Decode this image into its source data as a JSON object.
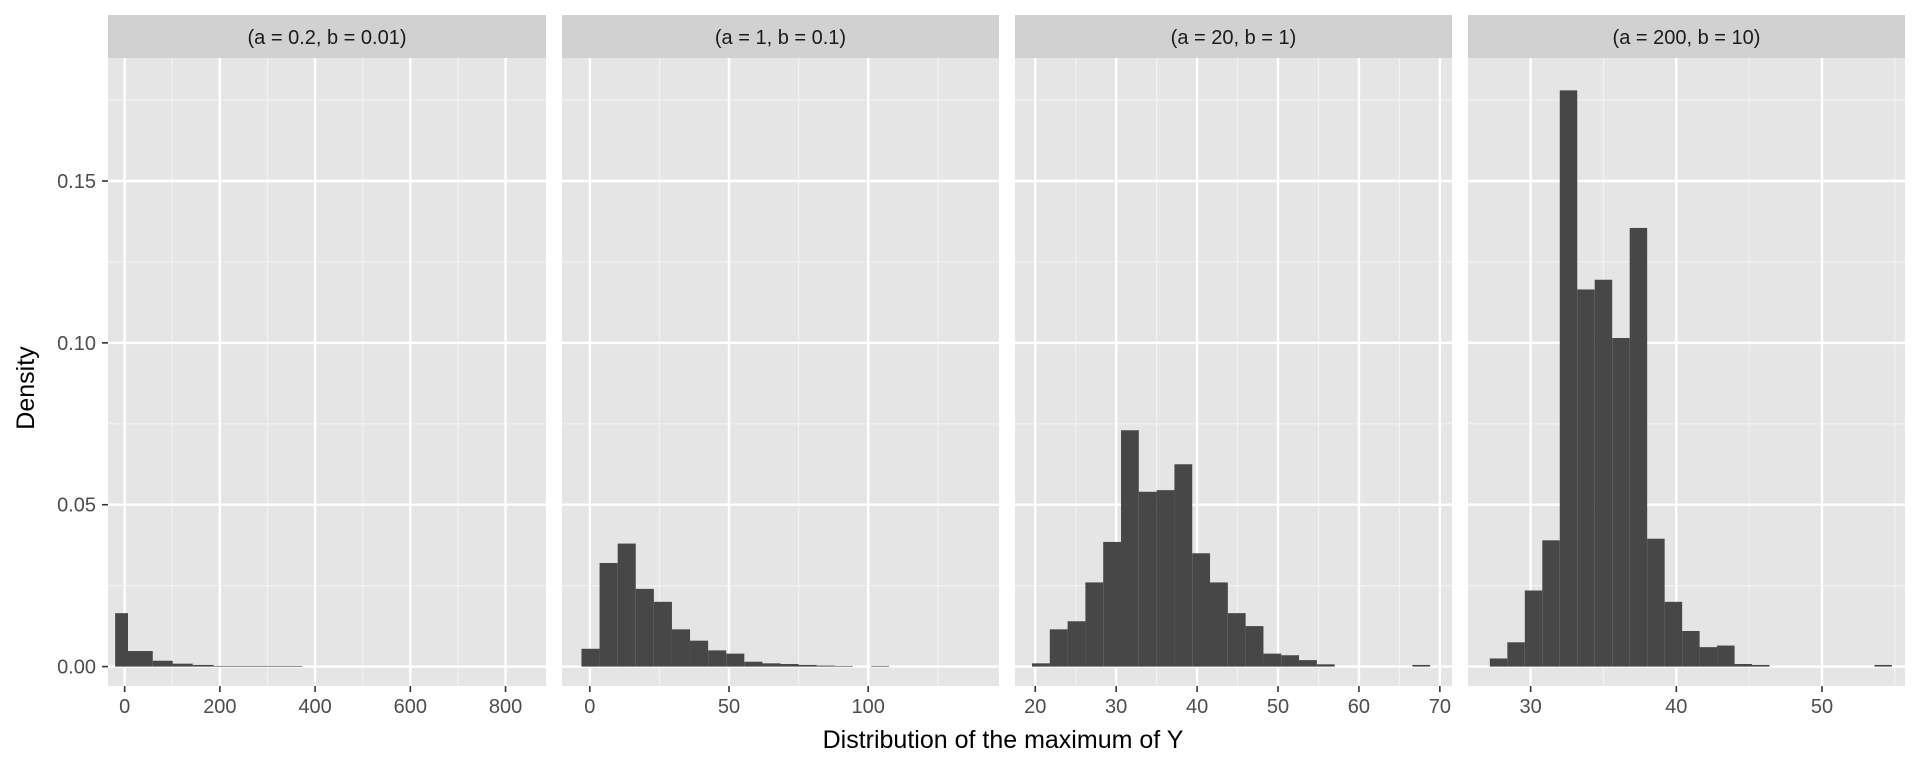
{
  "chart_data": {
    "type": "bar",
    "subtype": "faceted-histogram",
    "xlabel": "Distribution of the maximum of Y",
    "ylabel": "Density",
    "ylim": [
      -0.006,
      0.188
    ],
    "yticks": [
      0.0,
      0.05,
      0.1,
      0.15
    ],
    "ytick_labels": [
      "0.00",
      "0.05",
      "0.10",
      "0.15"
    ],
    "grid": true,
    "bar_color": "#474747",
    "panel_bg": "#e5e5e5",
    "strip_bg": "#d1d1d1",
    "facets": [
      {
        "label": "(a = 0.2, b = 0.01)",
        "xlim": [
          -35,
          885
        ],
        "xticks": [
          0,
          200,
          400,
          600,
          800
        ],
        "xtick_labels": [
          "0",
          "200",
          "400",
          "600",
          "800"
        ],
        "bins": [
          {
            "x0": -20,
            "x1": 7,
            "y": 0.0165
          },
          {
            "x0": 7,
            "x1": 59,
            "y": 0.0048
          },
          {
            "x0": 59,
            "x1": 101,
            "y": 0.0018
          },
          {
            "x0": 101,
            "x1": 143,
            "y": 0.0009
          },
          {
            "x0": 143,
            "x1": 187,
            "y": 0.0005
          },
          {
            "x0": 187,
            "x1": 373,
            "y": 0.0002
          }
        ]
      },
      {
        "label": "(a = 1, b = 0.1)",
        "xlim": [
          -10,
          147
        ],
        "xticks": [
          0,
          50,
          100
        ],
        "xtick_labels": [
          "0",
          "50",
          "100"
        ],
        "bins": [
          {
            "x0": -3,
            "x1": 3.5,
            "y": 0.0055
          },
          {
            "x0": 3.5,
            "x1": 10,
            "y": 0.032
          },
          {
            "x0": 10,
            "x1": 16.5,
            "y": 0.038
          },
          {
            "x0": 16.5,
            "x1": 23,
            "y": 0.024
          },
          {
            "x0": 23,
            "x1": 29.5,
            "y": 0.02
          },
          {
            "x0": 29.5,
            "x1": 36,
            "y": 0.0115
          },
          {
            "x0": 36,
            "x1": 42.5,
            "y": 0.008
          },
          {
            "x0": 42.5,
            "x1": 49,
            "y": 0.005
          },
          {
            "x0": 49,
            "x1": 55.5,
            "y": 0.004
          },
          {
            "x0": 55.5,
            "x1": 62,
            "y": 0.0015
          },
          {
            "x0": 62,
            "x1": 68.5,
            "y": 0.001
          },
          {
            "x0": 68.5,
            "x1": 75,
            "y": 0.0008
          },
          {
            "x0": 75,
            "x1": 81.5,
            "y": 0.0005
          },
          {
            "x0": 81.5,
            "x1": 88,
            "y": 0.0003
          },
          {
            "x0": 88,
            "x1": 94.5,
            "y": 0.0002
          },
          {
            "x0": 101,
            "x1": 107.5,
            "y": 0.0002
          }
        ]
      },
      {
        "label": "(a = 20, b = 1)",
        "xlim": [
          17.5,
          71.5
        ],
        "xticks": [
          20,
          30,
          40,
          50,
          60,
          70
        ],
        "xtick_labels": [
          "20",
          "30",
          "40",
          "50",
          "60",
          "70"
        ],
        "bins": [
          {
            "x0": 19.6,
            "x1": 21.8,
            "y": 0.001
          },
          {
            "x0": 21.8,
            "x1": 24,
            "y": 0.0115
          },
          {
            "x0": 24,
            "x1": 26.2,
            "y": 0.014
          },
          {
            "x0": 26.2,
            "x1": 28.4,
            "y": 0.026
          },
          {
            "x0": 28.4,
            "x1": 30.6,
            "y": 0.0385
          },
          {
            "x0": 30.6,
            "x1": 32.8,
            "y": 0.073
          },
          {
            "x0": 32.8,
            "x1": 35,
            "y": 0.054
          },
          {
            "x0": 35,
            "x1": 37.2,
            "y": 0.0545
          },
          {
            "x0": 37.2,
            "x1": 39.4,
            "y": 0.0625
          },
          {
            "x0": 39.4,
            "x1": 41.6,
            "y": 0.035
          },
          {
            "x0": 41.6,
            "x1": 43.8,
            "y": 0.026
          },
          {
            "x0": 43.8,
            "x1": 46,
            "y": 0.0165
          },
          {
            "x0": 46,
            "x1": 48.2,
            "y": 0.0125
          },
          {
            "x0": 48.2,
            "x1": 50.4,
            "y": 0.004
          },
          {
            "x0": 50.4,
            "x1": 52.6,
            "y": 0.0035
          },
          {
            "x0": 52.6,
            "x1": 54.8,
            "y": 0.002
          },
          {
            "x0": 54.8,
            "x1": 57,
            "y": 0.0007
          },
          {
            "x0": 66.6,
            "x1": 68.8,
            "y": 0.0005
          }
        ]
      },
      {
        "label": "(a = 200, b = 10)",
        "xlim": [
          25.7,
          55.7
        ],
        "xticks": [
          30,
          40,
          50
        ],
        "xtick_labels": [
          "30",
          "40",
          "50"
        ],
        "bins": [
          {
            "x0": 27.2,
            "x1": 28.4,
            "y": 0.0025
          },
          {
            "x0": 28.4,
            "x1": 29.6,
            "y": 0.0075
          },
          {
            "x0": 29.6,
            "x1": 30.8,
            "y": 0.0235
          },
          {
            "x0": 30.8,
            "x1": 32,
            "y": 0.039
          },
          {
            "x0": 32,
            "x1": 33.2,
            "y": 0.178
          },
          {
            "x0": 33.2,
            "x1": 34.4,
            "y": 0.1165
          },
          {
            "x0": 34.4,
            "x1": 35.6,
            "y": 0.1195
          },
          {
            "x0": 35.6,
            "x1": 36.8,
            "y": 0.1015
          },
          {
            "x0": 36.8,
            "x1": 38,
            "y": 0.1355
          },
          {
            "x0": 38,
            "x1": 39.2,
            "y": 0.0395
          },
          {
            "x0": 39.2,
            "x1": 40.4,
            "y": 0.02
          },
          {
            "x0": 40.4,
            "x1": 41.6,
            "y": 0.011
          },
          {
            "x0": 41.6,
            "x1": 42.8,
            "y": 0.006
          },
          {
            "x0": 42.8,
            "x1": 44,
            "y": 0.0065
          },
          {
            "x0": 44,
            "x1": 45.2,
            "y": 0.0008
          },
          {
            "x0": 45.2,
            "x1": 46.4,
            "y": 0.0005
          },
          {
            "x0": 53.6,
            "x1": 54.8,
            "y": 0.0005
          }
        ]
      }
    ]
  }
}
